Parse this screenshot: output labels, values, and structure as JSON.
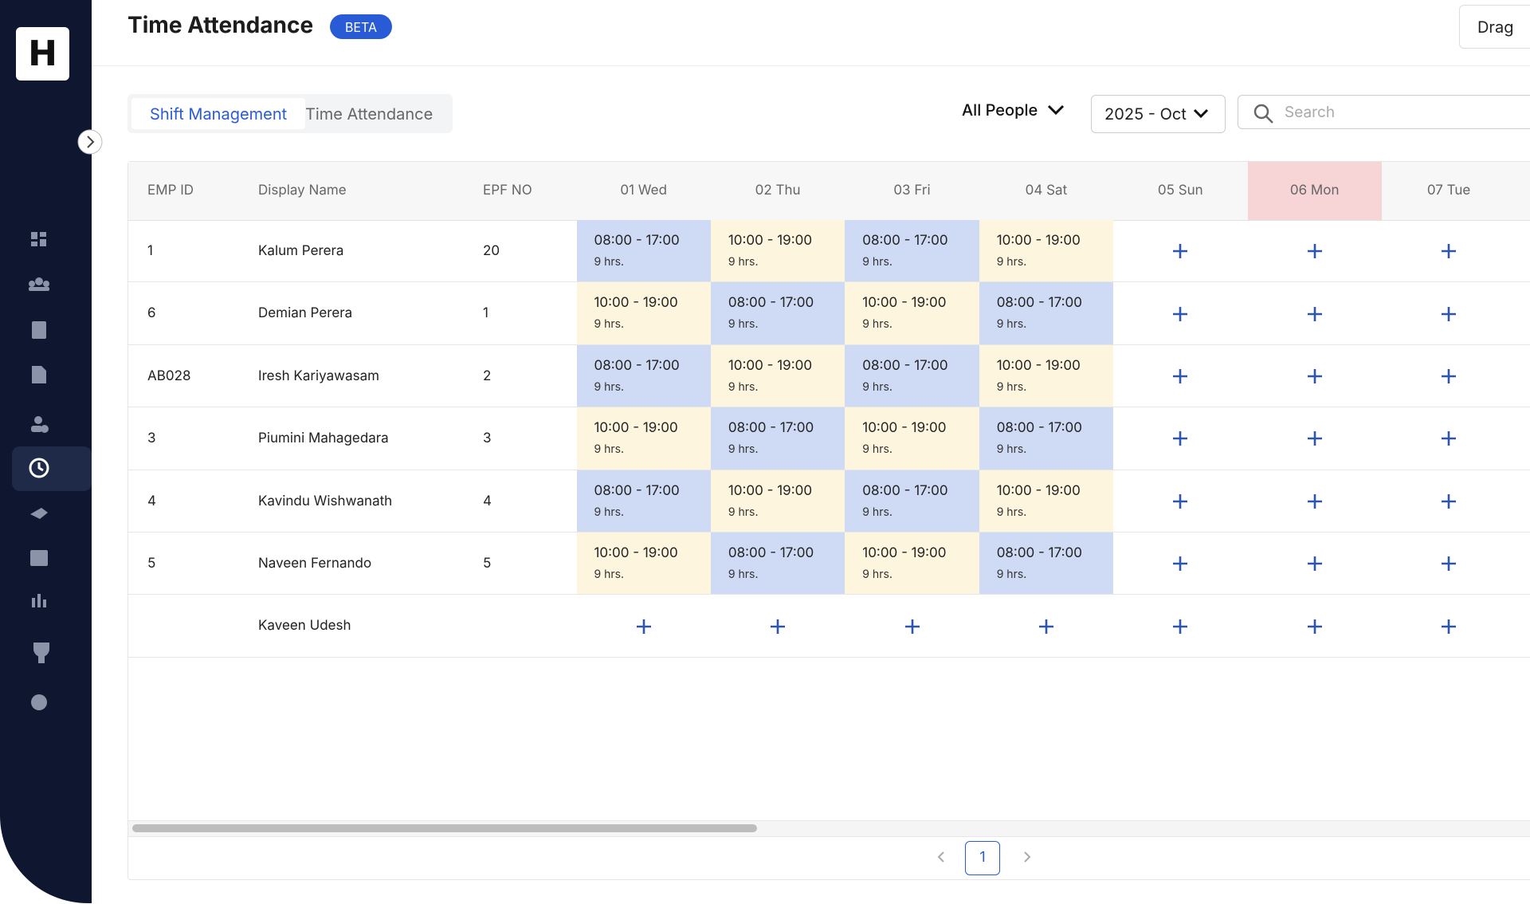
{
  "header": {
    "title": "Time Attendance",
    "badge": "BETA",
    "button": "Drag"
  },
  "tabs": [
    "Shift Management",
    "Time Attendance"
  ],
  "filters": {
    "people": "All People",
    "month": "2025 - Oct",
    "search_placeholder": "Search"
  },
  "table": {
    "columns": [
      {
        "label": "EMP ID"
      },
      {
        "label": "Display Name"
      },
      {
        "label": "EPF NO"
      },
      {
        "label": "01 Wed"
      },
      {
        "label": "02 Thu"
      },
      {
        "label": "03 Fri"
      },
      {
        "label": "04 Sat"
      },
      {
        "label": "05 Sun"
      },
      {
        "label": "06 Mon",
        "color": "#f7d5d7"
      },
      {
        "label": "07 Tue"
      }
    ],
    "rows": [
      {
        "emp_id": "1",
        "name": "Kalum Perera",
        "epf": "20",
        "days": [
          {
            "time": "08:00 - 17:00",
            "hours": "9 hrs.",
            "color": "#cfdaf4"
          },
          {
            "time": "10:00 - 19:00",
            "hours": "9 hrs.",
            "color": "#fdf5dd"
          },
          {
            "time": "08:00 - 17:00",
            "hours": "9 hrs.",
            "color": "#cfdaf4"
          },
          {
            "time": "10:00 - 19:00",
            "hours": "9 hrs.",
            "color": "#fdf5dd"
          },
          null,
          null,
          null
        ]
      },
      {
        "emp_id": "6",
        "name": "Demian Perera",
        "epf": "1",
        "days": [
          {
            "time": "10:00 - 19:00",
            "hours": "9 hrs.",
            "color": "#fdf5dd"
          },
          {
            "time": "08:00 - 17:00",
            "hours": "9 hrs.",
            "color": "#cfdaf4"
          },
          {
            "time": "10:00 - 19:00",
            "hours": "9 hrs.",
            "color": "#fdf5dd"
          },
          {
            "time": "08:00 - 17:00",
            "hours": "9 hrs.",
            "color": "#cfdaf4"
          },
          null,
          null,
          null
        ]
      },
      {
        "emp_id": "AB028",
        "name": "Iresh Kariyawasam",
        "epf": "2",
        "days": [
          {
            "time": "08:00 - 17:00",
            "hours": "9 hrs.",
            "color": "#cfdaf4"
          },
          {
            "time": "10:00 - 19:00",
            "hours": "9 hrs.",
            "color": "#fdf5dd"
          },
          {
            "time": "08:00 - 17:00",
            "hours": "9 hrs.",
            "color": "#cfdaf4"
          },
          {
            "time": "10:00 - 19:00",
            "hours": "9 hrs.",
            "color": "#fdf5dd"
          },
          null,
          null,
          null
        ]
      },
      {
        "emp_id": "3",
        "name": "Piumini Mahagedara",
        "epf": "3",
        "days": [
          {
            "time": "10:00 - 19:00",
            "hours": "9 hrs.",
            "color": "#fdf5dd"
          },
          {
            "time": "08:00 - 17:00",
            "hours": "9 hrs.",
            "color": "#cfdaf4"
          },
          {
            "time": "10:00 - 19:00",
            "hours": "9 hrs.",
            "color": "#fdf5dd"
          },
          {
            "time": "08:00 - 17:00",
            "hours": "9 hrs.",
            "color": "#cfdaf4"
          },
          null,
          null,
          null
        ]
      },
      {
        "emp_id": "4",
        "name": "Kavindu Wishwanath",
        "epf": "4",
        "days": [
          {
            "time": "08:00 - 17:00",
            "hours": "9 hrs.",
            "color": "#cfdaf4"
          },
          {
            "time": "10:00 - 19:00",
            "hours": "9 hrs.",
            "color": "#fdf5dd"
          },
          {
            "time": "08:00 - 17:00",
            "hours": "9 hrs.",
            "color": "#cfdaf4"
          },
          {
            "time": "10:00 - 19:00",
            "hours": "9 hrs.",
            "color": "#fdf5dd"
          },
          null,
          null,
          null
        ]
      },
      {
        "emp_id": "5",
        "name": "Naveen Fernando",
        "epf": "5",
        "days": [
          {
            "time": "10:00 - 19:00",
            "hours": "9 hrs.",
            "color": "#fdf5dd"
          },
          {
            "time": "08:00 - 17:00",
            "hours": "9 hrs.",
            "color": "#cfdaf4"
          },
          {
            "time": "10:00 - 19:00",
            "hours": "9 hrs.",
            "color": "#fdf5dd"
          },
          {
            "time": "08:00 - 17:00",
            "hours": "9 hrs.",
            "color": "#cfdaf4"
          },
          null,
          null,
          null
        ]
      },
      {
        "emp_id": null,
        "name": "Kaveen Udesh",
        "epf": null,
        "days": [
          null,
          null,
          null,
          null,
          null,
          null,
          null
        ]
      }
    ]
  },
  "pagination": {
    "page": "1"
  }
}
